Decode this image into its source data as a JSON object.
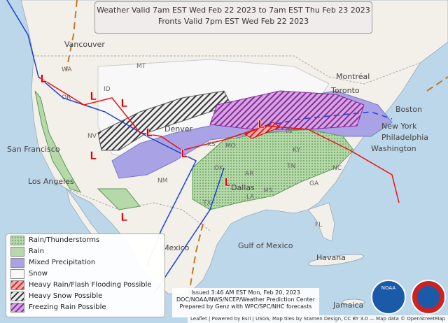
{
  "header": {
    "lines": [
      "Weather Valid 7am EST Wed Feb 22 2023 to 7am EST Thu Feb 23 2023",
      "Fronts Valid 7pm EST Wed Feb 22 2023"
    ]
  },
  "legend": {
    "items": [
      "Rain/Thunderstorms",
      "Rain",
      "Mixed Precipitation",
      "Snow",
      "Heavy Rain/Flash Flooding Possible",
      "Heavy Snow Possible",
      "Freezing Rain Possible"
    ]
  },
  "issued": {
    "lines": [
      "Issued 3:46 AM EST Mon, Feb 20, 2023",
      "DOC/NOAA/NWS/NCEP/Weather Prediction Center",
      "Prepared by Genz with WPC/SPC/NHC forecasts"
    ]
  },
  "attribution": "Leaflet | Powered by Esri | USGS, Map tiles by Stamen Design, CC BY 3.0 — Map data © OpenStreetMap",
  "low_symbol": "L",
  "map_labels": [
    "Vancouver",
    "WA",
    "OR",
    "ID",
    "MT",
    "NV",
    "San Francisco",
    "Los Angeles",
    "Denver",
    "NM",
    "KS",
    "MO",
    "OK",
    "AR",
    "TX",
    "Dallas",
    "LA",
    "MS",
    "IN",
    "KY",
    "TN",
    "NC",
    "GA",
    "FL",
    "Montréal",
    "Toronto",
    "Boston",
    "New York",
    "Philadelphia",
    "Washington",
    "Mexico",
    "Gulf of Mexico",
    "Havana",
    "Jamaica"
  ],
  "logos": [
    "NOAA",
    "NATIONAL WEATHER SERVICE"
  ]
}
